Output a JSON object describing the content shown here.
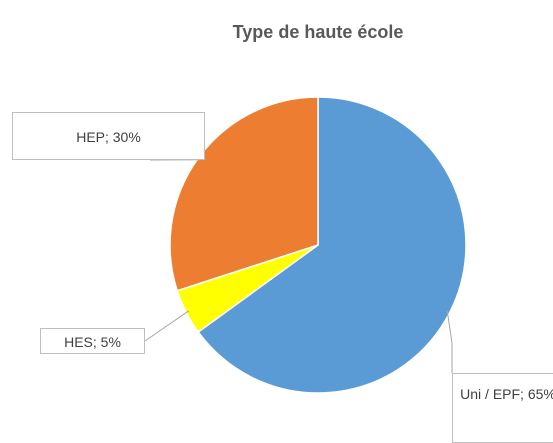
{
  "chart_data": {
    "type": "pie",
    "title": "Type de haute école",
    "values": [
      65,
      5,
      30
    ],
    "value_labels": [
      "Uni / EPF; 65%",
      "HES; 5%",
      "HEP; 30%"
    ],
    "colors": [
      "#5b9bd5",
      "#ffff00",
      "#ed7d31"
    ]
  }
}
